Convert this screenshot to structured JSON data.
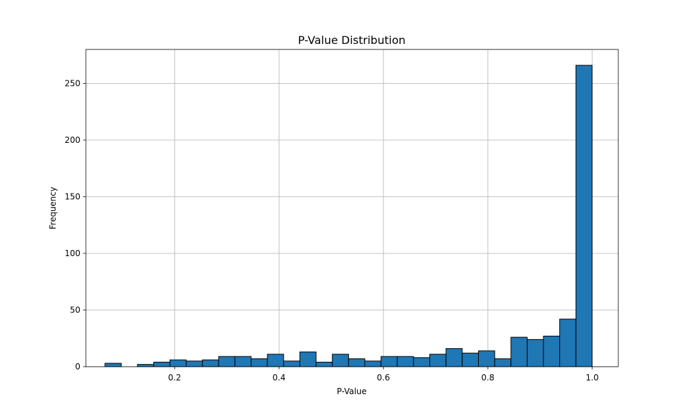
{
  "chart_data": {
    "type": "bar",
    "title": "P-Value Distribution",
    "xlabel": "P-Value",
    "ylabel": "Frequency",
    "xlim": [
      0.03,
      1.05
    ],
    "ylim": [
      0,
      280
    ],
    "xticks": [
      0.2,
      0.4,
      0.6,
      0.8,
      1.0
    ],
    "xtick_labels": [
      "0.2",
      "0.4",
      "0.6",
      "0.8",
      "1.0"
    ],
    "yticks": [
      0,
      50,
      100,
      150,
      200,
      250
    ],
    "ytick_labels": [
      "0",
      "50",
      "100",
      "150",
      "200",
      "250"
    ],
    "grid": true,
    "bar_color": "#1f77b4",
    "edge_color": "#000000",
    "bin_start": 0.0666,
    "bin_width": 0.03111,
    "values": [
      3,
      0,
      2,
      4,
      6,
      5,
      6,
      9,
      9,
      7,
      11,
      5,
      13,
      4,
      11,
      7,
      5,
      9,
      9,
      8,
      11,
      16,
      12,
      14,
      7,
      26,
      24,
      27,
      42,
      266
    ]
  }
}
